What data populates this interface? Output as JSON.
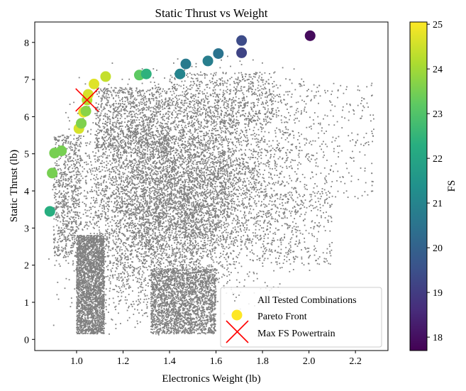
{
  "chart_data": {
    "type": "scatter",
    "title": "Static Thrust vs Weight",
    "xlabel": "Electronics Weight (lb)",
    "ylabel": "Static Thrust (lb)",
    "xlim": [
      0.82,
      2.34
    ],
    "ylim": [
      -0.3,
      8.55
    ],
    "xticks": [
      1.0,
      1.2,
      1.4,
      1.6,
      1.8,
      2.0,
      2.2
    ],
    "xtick_labels": [
      "1.0",
      "1.2",
      "1.4",
      "1.6",
      "1.8",
      "2.0",
      "2.2"
    ],
    "yticks": [
      0,
      1,
      2,
      3,
      4,
      5,
      6,
      7,
      8
    ],
    "ytick_labels": [
      "0",
      "1",
      "2",
      "3",
      "4",
      "5",
      "6",
      "7",
      "8"
    ],
    "grid": false,
    "legend_position": "lower-right",
    "colorbar": {
      "label": "FS",
      "range": [
        17.7,
        25.05
      ],
      "ticks": [
        18,
        19,
        20,
        21,
        22,
        23,
        24,
        25
      ],
      "tick_labels": [
        "18",
        "19",
        "20",
        "21",
        "22",
        "23",
        "24",
        "25"
      ],
      "colormap": "viridis"
    },
    "series": [
      {
        "name": "All Tested Combinations",
        "color": "#808080",
        "marker": "small-dot"
      },
      {
        "name": "Pareto Front",
        "marker": "circle",
        "legend_color": "#fde725",
        "points": [
          {
            "x": 0.885,
            "y": 3.45,
            "fs": 22.3
          },
          {
            "x": 0.895,
            "y": 4.48,
            "fs": 23.5
          },
          {
            "x": 0.905,
            "y": 5.02,
            "fs": 23.5
          },
          {
            "x": 0.935,
            "y": 5.08,
            "fs": 23.5
          },
          {
            "x": 1.01,
            "y": 5.68,
            "fs": 24.6
          },
          {
            "x": 1.02,
            "y": 5.82,
            "fs": 23.6
          },
          {
            "x": 1.03,
            "y": 6.12,
            "fs": 24.8
          },
          {
            "x": 1.04,
            "y": 6.15,
            "fs": 23.7
          },
          {
            "x": 1.045,
            "y": 6.45,
            "fs": 24.2
          },
          {
            "x": 1.05,
            "y": 6.6,
            "fs": 24.6
          },
          {
            "x": 1.075,
            "y": 6.88,
            "fs": 24.7
          },
          {
            "x": 1.125,
            "y": 7.08,
            "fs": 24.4
          },
          {
            "x": 1.27,
            "y": 7.12,
            "fs": 23.2
          },
          {
            "x": 1.3,
            "y": 7.15,
            "fs": 22.4
          },
          {
            "x": 1.445,
            "y": 7.15,
            "fs": 21.0
          },
          {
            "x": 1.47,
            "y": 7.42,
            "fs": 20.7
          },
          {
            "x": 1.565,
            "y": 7.5,
            "fs": 20.8
          },
          {
            "x": 1.61,
            "y": 7.7,
            "fs": 20.5
          },
          {
            "x": 1.71,
            "y": 7.72,
            "fs": 19.2
          },
          {
            "x": 1.71,
            "y": 8.05,
            "fs": 19.4
          },
          {
            "x": 2.005,
            "y": 8.18,
            "fs": 17.9
          }
        ]
      },
      {
        "name": "Max FS Powertrain",
        "marker": "x",
        "color": "#ff0000",
        "points": [
          {
            "x": 1.045,
            "y": 6.45
          }
        ]
      }
    ]
  }
}
